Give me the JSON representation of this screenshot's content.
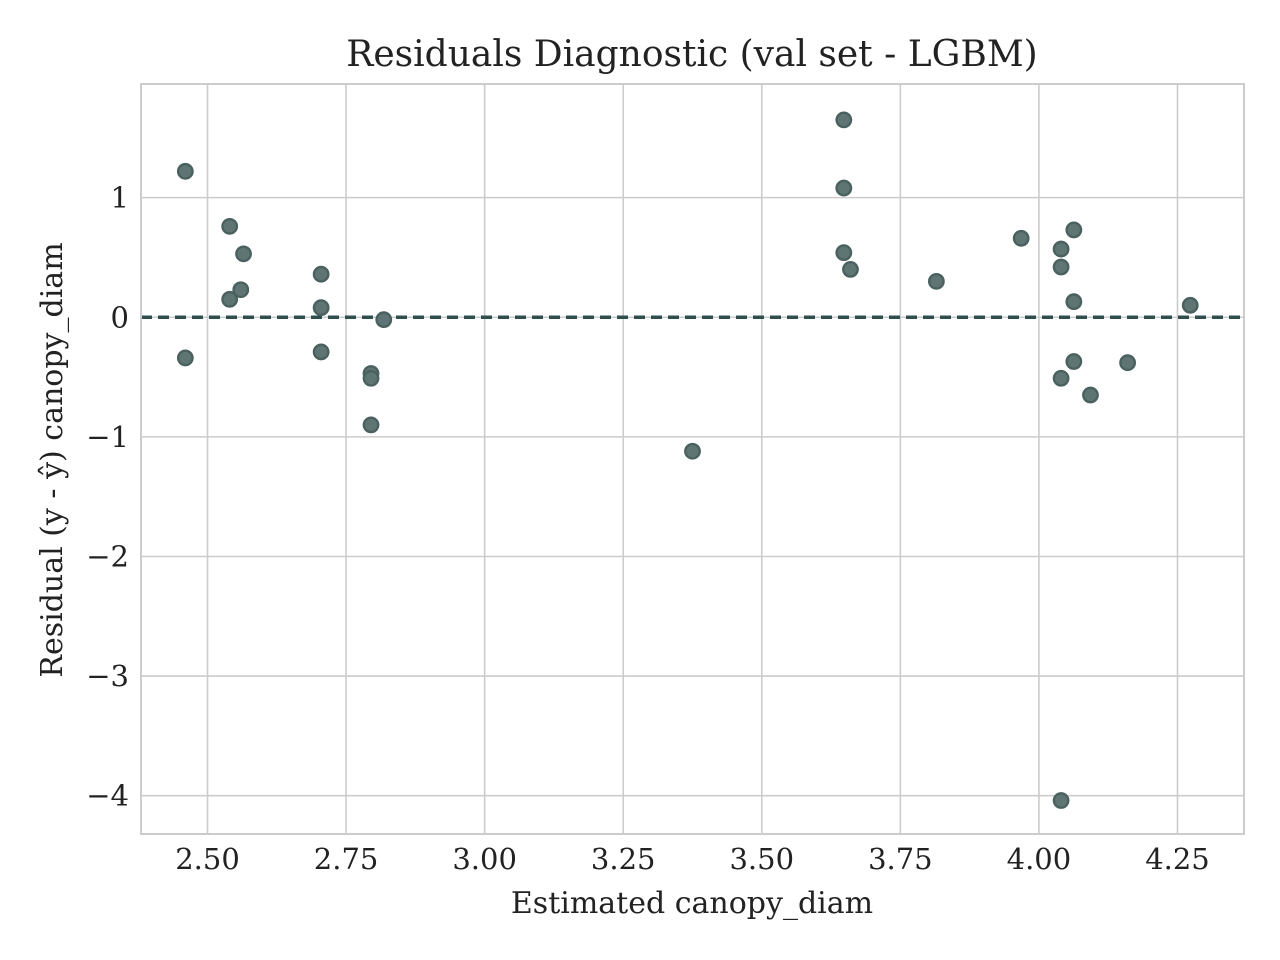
{
  "chart_data": {
    "type": "scatter",
    "title": "Residuals Diagnostic (val set - LGBM)",
    "xlabel": "Estimated canopy_diam",
    "ylabel": "Residual (y - ŷ) canopy_diam",
    "xlim": [
      2.38,
      4.37
    ],
    "ylim": [
      -4.32,
      1.95
    ],
    "x_ticks": [
      2.5,
      2.75,
      3.0,
      3.25,
      3.5,
      3.75,
      4.0,
      4.25
    ],
    "x_tick_labels": [
      "2.50",
      "2.75",
      "3.00",
      "3.25",
      "3.50",
      "3.75",
      "4.00",
      "4.25"
    ],
    "y_ticks": [
      1,
      0,
      -1,
      -2,
      -3,
      -4
    ],
    "y_tick_labels": [
      "1",
      "0",
      "−1",
      "−2",
      "−3",
      "−4"
    ],
    "grid": true,
    "reference_line": {
      "y": 0,
      "style": "dashed",
      "color": "#2f4f4f"
    },
    "marker_fill": "#5f7574",
    "marker_edge": "#4a6160",
    "points": [
      {
        "x": 2.46,
        "y": 1.22
      },
      {
        "x": 2.46,
        "y": -0.34
      },
      {
        "x": 2.54,
        "y": 0.76
      },
      {
        "x": 2.54,
        "y": 0.15
      },
      {
        "x": 2.565,
        "y": 0.53
      },
      {
        "x": 2.56,
        "y": 0.23
      },
      {
        "x": 2.705,
        "y": 0.36
      },
      {
        "x": 2.705,
        "y": 0.08
      },
      {
        "x": 2.705,
        "y": -0.29
      },
      {
        "x": 2.795,
        "y": -0.47
      },
      {
        "x": 2.795,
        "y": -0.51
      },
      {
        "x": 2.795,
        "y": -0.9
      },
      {
        "x": 2.818,
        "y": -0.02
      },
      {
        "x": 3.375,
        "y": -1.12
      },
      {
        "x": 3.648,
        "y": 1.65
      },
      {
        "x": 3.648,
        "y": 1.08
      },
      {
        "x": 3.648,
        "y": 0.54
      },
      {
        "x": 3.66,
        "y": 0.4
      },
      {
        "x": 3.815,
        "y": 0.3
      },
      {
        "x": 3.968,
        "y": 0.66
      },
      {
        "x": 4.04,
        "y": 0.57
      },
      {
        "x": 4.04,
        "y": 0.42
      },
      {
        "x": 4.04,
        "y": -0.51
      },
      {
        "x": 4.04,
        "y": -4.04
      },
      {
        "x": 4.063,
        "y": 0.73
      },
      {
        "x": 4.063,
        "y": 0.13
      },
      {
        "x": 4.063,
        "y": -0.37
      },
      {
        "x": 4.093,
        "y": -0.65
      },
      {
        "x": 4.16,
        "y": -0.38
      },
      {
        "x": 4.273,
        "y": 0.1
      }
    ]
  }
}
